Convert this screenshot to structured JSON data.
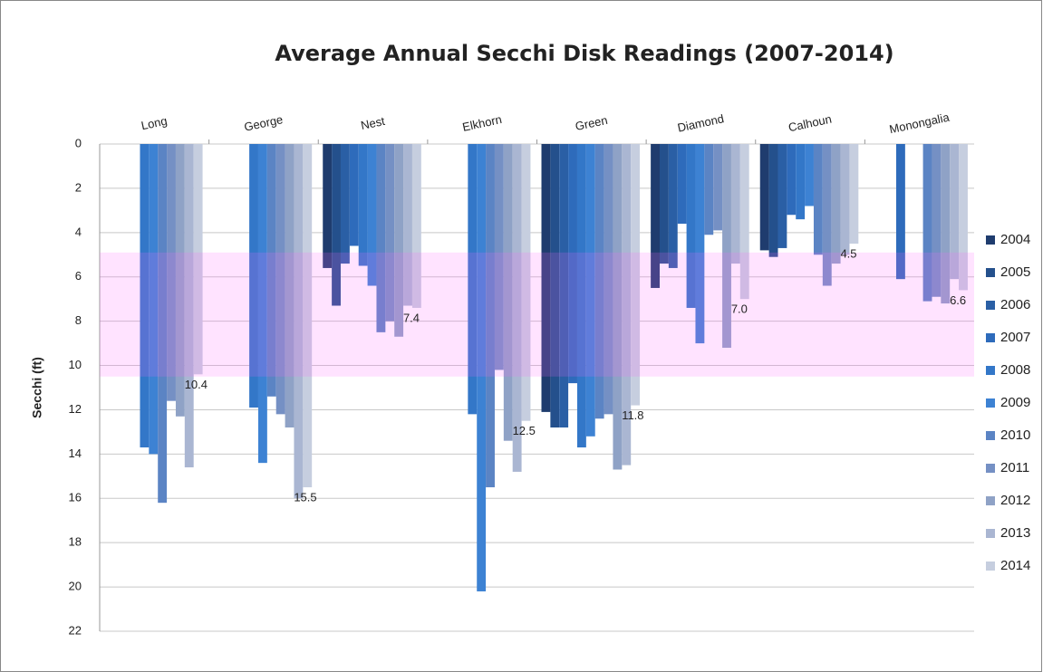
{
  "chart_data": {
    "type": "bar",
    "title": "Average Annual Secchi Disk Readings (2007-2014)",
    "y_label": "Secchi (ft)",
    "categories": [
      "Long",
      "George",
      "Nest",
      "Elkhorn",
      "Green",
      "Diamond",
      "Calhoun",
      "Monongalia"
    ],
    "ylim": [
      0,
      22
    ],
    "y_inverted": true,
    "yticks": [
      0,
      2,
      4,
      6,
      8,
      10,
      12,
      14,
      16,
      18,
      20,
      22
    ],
    "grid": true,
    "legend": "right",
    "band": {
      "from": 4.9,
      "to": 10.5,
      "color": "#ff66ff",
      "opacity": 0.18
    },
    "series": [
      {
        "name": "2004",
        "color": "#1f3c6e",
        "values": [
          null,
          null,
          5.6,
          null,
          12.1,
          6.5,
          4.8,
          null
        ]
      },
      {
        "name": "2005",
        "color": "#24508c",
        "values": [
          null,
          null,
          7.3,
          null,
          12.8,
          5.4,
          5.1,
          null
        ]
      },
      {
        "name": "2006",
        "color": "#2a5fa5",
        "values": [
          null,
          null,
          5.4,
          null,
          12.8,
          5.6,
          4.7,
          null
        ]
      },
      {
        "name": "2007",
        "color": "#2e6bbb",
        "values": [
          null,
          null,
          4.6,
          null,
          10.8,
          3.6,
          3.2,
          6.1
        ]
      },
      {
        "name": "2008",
        "color": "#3377c8",
        "values": [
          13.7,
          11.9,
          5.5,
          12.2,
          13.7,
          7.4,
          3.4,
          null
        ]
      },
      {
        "name": "2009",
        "color": "#3d82d3",
        "values": [
          14.0,
          14.4,
          6.4,
          20.2,
          13.2,
          9.0,
          2.8,
          null
        ]
      },
      {
        "name": "2010",
        "color": "#5b84c4",
        "values": [
          16.2,
          11.4,
          8.5,
          15.5,
          12.4,
          4.1,
          5.0,
          7.1
        ]
      },
      {
        "name": "2011",
        "color": "#7590c4",
        "values": [
          11.6,
          12.2,
          8.0,
          10.2,
          12.2,
          3.9,
          6.4,
          6.9
        ]
      },
      {
        "name": "2012",
        "color": "#8fa2c6",
        "values": [
          12.3,
          12.8,
          8.7,
          13.4,
          14.7,
          9.2,
          5.4,
          7.2
        ]
      },
      {
        "name": "2013",
        "color": "#aab6d2",
        "values": [
          14.6,
          16.0,
          7.3,
          14.8,
          14.5,
          5.4,
          5.0,
          6.1
        ]
      },
      {
        "name": "2014",
        "color": "#c6cedf",
        "values": [
          10.4,
          15.5,
          7.4,
          12.5,
          11.8,
          7.0,
          4.5,
          6.6
        ],
        "value_labels": [
          "10.4",
          "15.5",
          "7.4",
          "12.5",
          "11.8",
          "7.0",
          "4.5",
          "6.6"
        ]
      }
    ]
  }
}
